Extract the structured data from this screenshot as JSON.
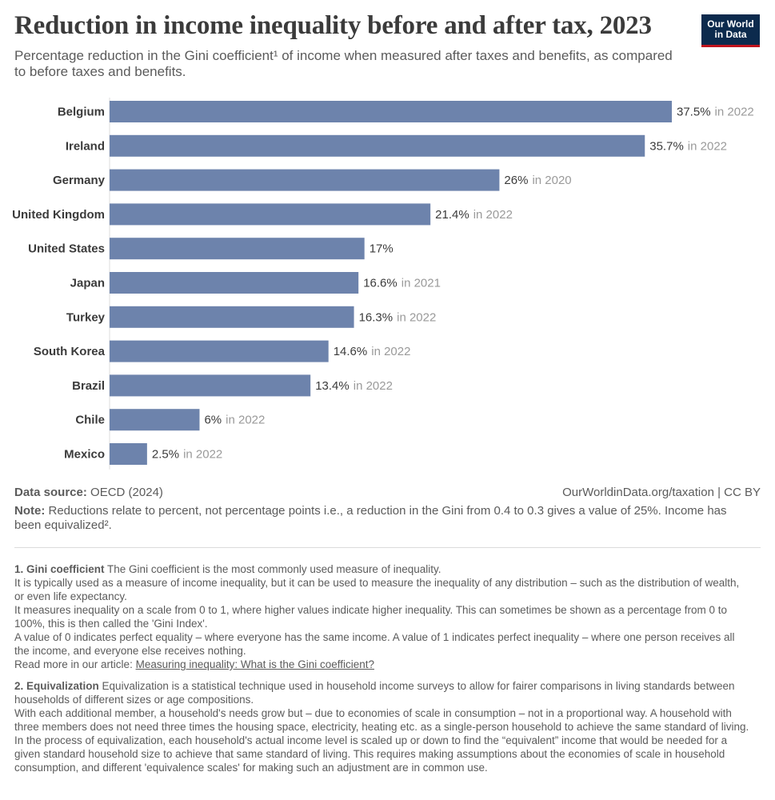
{
  "header": {
    "title": "Reduction in income inequality before and after tax, 2023",
    "subtitle": "Percentage reduction in the Gini coefficient¹ of income when measured after taxes and benefits, as compared to before taxes and benefits.",
    "logo_line1": "Our World",
    "logo_line2": "in Data"
  },
  "chart_data": {
    "type": "bar",
    "orientation": "horizontal",
    "title": "Reduction in income inequality before and after tax, 2023",
    "categories": [
      "Belgium",
      "Ireland",
      "Germany",
      "United Kingdom",
      "United States",
      "Japan",
      "Turkey",
      "South Korea",
      "Brazil",
      "Chile",
      "Mexico"
    ],
    "values": [
      37.5,
      35.7,
      26,
      21.4,
      17,
      16.6,
      16.3,
      14.6,
      13.4,
      6,
      2.5
    ],
    "value_labels": [
      "37.5%",
      "35.7%",
      "26%",
      "21.4%",
      "17%",
      "16.6%",
      "16.3%",
      "14.6%",
      "13.4%",
      "6%",
      "2.5%"
    ],
    "year_labels": [
      "in 2022",
      "in 2022",
      "in 2020",
      "in 2022",
      "",
      "in 2021",
      "in 2022",
      "in 2022",
      "in 2022",
      "in 2022",
      "in 2022"
    ],
    "bar_color": "#6d83ac",
    "xlim": [
      0,
      37.5
    ]
  },
  "footer": {
    "source_label": "Data source:",
    "source_value": "OECD (2024)",
    "license": "OurWorldinData.org/taxation | CC BY",
    "note_label": "Note:",
    "note_text": "Reductions relate to percent, not percentage points i.e., a reduction in the Gini from 0.4 to 0.3 gives a value of 25%. Income has been equivalized²."
  },
  "footnotes": {
    "gini": {
      "label": "1. Gini coefficient",
      "lead": "The Gini coefficient is the most commonly used measure of inequality.",
      "p1": "It is typically used as a measure of income inequality, but it can be used to measure the inequality of any distribution – such as the distribution of wealth, or even life expectancy.",
      "p2": "It measures inequality on a scale from 0 to 1, where higher values indicate higher inequality. This can sometimes be shown as a percentage from 0 to 100%, this is then called the 'Gini Index'.",
      "p3": "A value of 0 indicates perfect equality – where everyone has the same income. A value of 1 indicates perfect inequality – where one person receives all the income, and everyone else receives nothing.",
      "read_more": "Read more in our article:",
      "link_text": "Measuring inequality: What is the Gini coefficient?"
    },
    "equivalization": {
      "label": "2. Equivalization",
      "lead": "Equivalization is a statistical technique used in household income surveys to allow for fairer comparisons in living standards between households of different sizes or age compositions.",
      "p1": "With each additional member, a household's needs grow but – due to economies of scale in consumption – not in a proportional way. A household with three members does not need three times the housing space, electricity, heating etc. as a single-person household to achieve the same standard of living.",
      "p2": "In the process of equivalization, each household's actual income level is scaled up or down to find the “equivalent” income that would be needed for a given standard household size to achieve that same standard of living. This requires making assumptions about the economies of scale in household consumption, and different 'equivalence scales' for making such an adjustment are in common use."
    }
  }
}
